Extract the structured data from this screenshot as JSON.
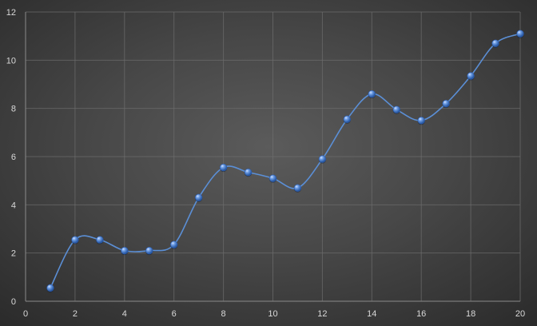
{
  "chart_data": {
    "type": "scatter",
    "title": "",
    "xlabel": "",
    "ylabel": "",
    "xlim": [
      0,
      20
    ],
    "ylim": [
      0,
      12
    ],
    "x_ticks": [
      0,
      2,
      4,
      6,
      8,
      10,
      12,
      14,
      16,
      18,
      20
    ],
    "y_ticks": [
      0,
      2,
      4,
      6,
      8,
      10,
      12
    ],
    "grid": true,
    "legend": "none",
    "smooth_line": true,
    "colors": {
      "line": "#5b8fd6",
      "marker": "#4a7fd0",
      "grid": "#6e6e6e",
      "axis": "#8a8a8a",
      "tick_text": "#d9d9d9"
    },
    "series": [
      {
        "x": [
          1,
          2,
          3,
          4,
          5,
          6,
          7,
          8,
          9,
          10,
          11,
          12,
          13,
          14,
          15,
          16,
          17,
          18,
          19,
          20
        ],
        "y": [
          0.55,
          2.55,
          2.55,
          2.1,
          2.1,
          2.35,
          4.3,
          5.55,
          5.35,
          5.1,
          4.7,
          5.9,
          7.55,
          8.6,
          7.95,
          7.5,
          8.2,
          9.35,
          10.7,
          11.1
        ]
      }
    ]
  }
}
